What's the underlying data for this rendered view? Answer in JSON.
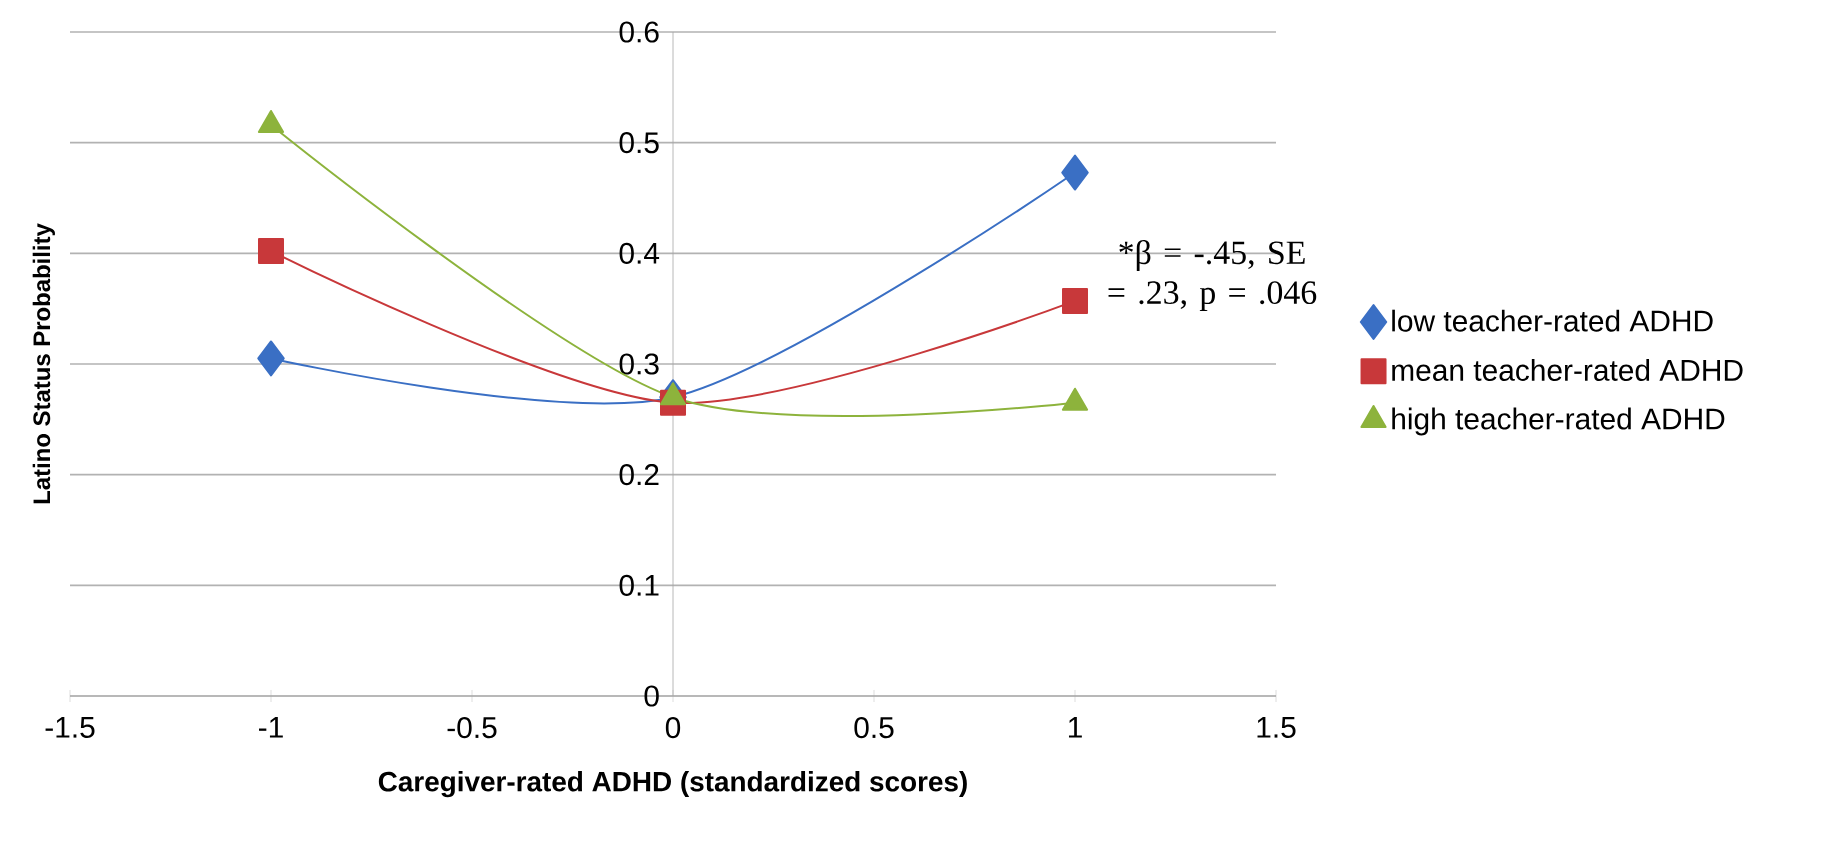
{
  "chart_data": {
    "type": "line",
    "xlabel": "Caregiver-rated ADHD (standardized scores)",
    "ylabel": "Latino Status Probability",
    "x": [
      -1,
      0,
      1
    ],
    "xlim": [
      -1.5,
      1.5
    ],
    "xticks": [
      -1.5,
      -1,
      -0.5,
      0,
      0.5,
      1,
      1.5
    ],
    "ylim": [
      0,
      0.6
    ],
    "yticks": [
      0,
      0.1,
      0.2,
      0.3,
      0.4,
      0.5,
      0.6
    ],
    "grid": "y",
    "legend": "right",
    "series": [
      {
        "name": "low teacher-rated ADHD",
        "color": "#3a6fc4",
        "marker": "diamond",
        "values": [
          0.305,
          0.27,
          0.473
        ]
      },
      {
        "name": "mean teacher-rated ADHD",
        "color": "#c8383a",
        "marker": "square",
        "values": [
          0.402,
          0.265,
          0.357
        ]
      },
      {
        "name": "high teacher-rated ADHD",
        "color": "#8db33c",
        "marker": "triangle",
        "values": [
          0.516,
          0.27,
          0.265
        ]
      }
    ],
    "annotations": [
      "*β = -.45, SE = .23, p = .046"
    ]
  }
}
